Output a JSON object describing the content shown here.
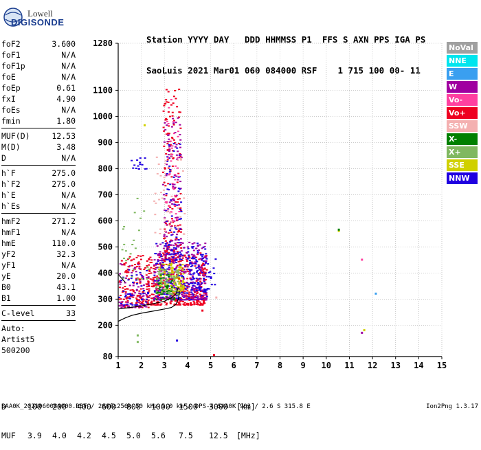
{
  "logo": {
    "line1": "Lowell",
    "line2": "DIGISONDE"
  },
  "header": {
    "labels": "Station YYYY DAY   DDD HHMMSS P1  FFS S AXN PPS IGA PS",
    "values": "SaoLuis 2021 Mar01 060 084000 RSF    1 715 100 00- 11"
  },
  "params_groups": [
    [
      {
        "name": "foF2",
        "value": "3.600"
      },
      {
        "name": "foF1",
        "value": "N/A"
      },
      {
        "name": "foF1p",
        "value": "N/A"
      },
      {
        "name": "foE",
        "value": "N/A"
      },
      {
        "name": "foEp",
        "value": "0.61"
      },
      {
        "name": "fxI",
        "value": "4.90"
      },
      {
        "name": "foEs",
        "value": "N/A"
      },
      {
        "name": "fmin",
        "value": "1.80"
      }
    ],
    [
      {
        "name": "MUF(D)",
        "value": "12.53"
      },
      {
        "name": "M(D)",
        "value": "3.48"
      },
      {
        "name": "D",
        "value": "N/A"
      }
    ],
    [
      {
        "name": "h`F",
        "value": "275.0"
      },
      {
        "name": "h`F2",
        "value": "275.0"
      },
      {
        "name": "h`E",
        "value": "N/A"
      },
      {
        "name": "h`Es",
        "value": "N/A"
      }
    ],
    [
      {
        "name": "hmF2",
        "value": "271.2"
      },
      {
        "name": "hmF1",
        "value": "N/A"
      },
      {
        "name": "hmE",
        "value": "110.0"
      },
      {
        "name": "yF2",
        "value": "32.3"
      },
      {
        "name": "yF1",
        "value": "N/A"
      },
      {
        "name": "yE",
        "value": "20.0"
      },
      {
        "name": "B0",
        "value": "43.1"
      },
      {
        "name": "B1",
        "value": "1.00"
      }
    ],
    [
      {
        "name": "C-level",
        "value": "33"
      }
    ]
  ],
  "autoscale": [
    "Auto:",
    "Artist5",
    "500200"
  ],
  "legend": [
    {
      "label": "NoVal",
      "color": "#a0a0a0"
    },
    {
      "label": "NNE",
      "color": "#00e5ee"
    },
    {
      "label": "E",
      "color": "#3a9ff0"
    },
    {
      "label": "W",
      "color": "#a000a0"
    },
    {
      "label": "Vo-",
      "color": "#ff40a0"
    },
    {
      "label": "Vo+",
      "color": "#ee0020"
    },
    {
      "label": "SSW",
      "color": "#f4b0b0"
    },
    {
      "label": "X-",
      "color": "#008000"
    },
    {
      "label": "X+",
      "color": "#80b860"
    },
    {
      "label": "SSE",
      "color": "#d0d000"
    },
    {
      "label": "NNW",
      "color": "#2000e0"
    }
  ],
  "chart_data": {
    "type": "scatter",
    "xlim": [
      1,
      15
    ],
    "ylim": [
      80,
      1280
    ],
    "x_ticks": [
      1,
      2,
      3,
      4,
      5,
      6,
      7,
      8,
      9,
      10,
      11,
      12,
      13,
      14,
      15
    ],
    "y_ticks": [
      80,
      200,
      300,
      400,
      500,
      600,
      700,
      800,
      900,
      1000,
      1100,
      1280
    ],
    "grid": true,
    "legend_position": "right",
    "clusters": [
      {
        "x_min": 1.0,
        "x_max": 2.3,
        "y_min": 270,
        "y_max": 470,
        "color": "#ee0020",
        "n": 140
      },
      {
        "x_min": 1.0,
        "x_max": 2.3,
        "y_min": 270,
        "y_max": 440,
        "color": "#a000a0",
        "n": 70
      },
      {
        "x_min": 1.0,
        "x_max": 2.3,
        "y_min": 280,
        "y_max": 420,
        "color": "#2000e0",
        "n": 50
      },
      {
        "x_min": 2.2,
        "x_max": 4.8,
        "y_min": 280,
        "y_max": 480,
        "color": "#ee0020",
        "n": 420
      },
      {
        "x_min": 2.5,
        "x_max": 4.8,
        "y_min": 300,
        "y_max": 520,
        "color": "#2000e0",
        "n": 260
      },
      {
        "x_min": 2.5,
        "x_max": 4.8,
        "y_min": 300,
        "y_max": 520,
        "color": "#a000a0",
        "n": 240
      },
      {
        "x_min": 2.7,
        "x_max": 3.8,
        "y_min": 330,
        "y_max": 440,
        "color": "#d0d000",
        "n": 110
      },
      {
        "x_min": 2.6,
        "x_max": 3.6,
        "y_min": 320,
        "y_max": 420,
        "color": "#80b860",
        "n": 90
      },
      {
        "x_min": 2.6,
        "x_max": 3.4,
        "y_min": 300,
        "y_max": 400,
        "color": "#008000",
        "n": 40
      },
      {
        "x_min": 1.1,
        "x_max": 2.3,
        "y_min": 380,
        "y_max": 700,
        "color": "#80b860",
        "n": 25
      },
      {
        "x_min": 2.9,
        "x_max": 3.7,
        "y_min": 450,
        "y_max": 1110,
        "color": "#ee0020",
        "n": 160
      },
      {
        "x_min": 2.9,
        "x_max": 3.7,
        "y_min": 450,
        "y_max": 1000,
        "color": "#a000a0",
        "n": 110
      },
      {
        "x_min": 3.0,
        "x_max": 3.7,
        "y_min": 450,
        "y_max": 900,
        "color": "#2000e0",
        "n": 70
      },
      {
        "x_min": 3.0,
        "x_max": 3.6,
        "y_min": 600,
        "y_max": 1080,
        "color": "#ff40a0",
        "n": 40
      },
      {
        "x_min": 2.5,
        "x_max": 3.9,
        "y_min": 550,
        "y_max": 860,
        "color": "#f4b0b0",
        "n": 40
      },
      {
        "x_min": 4.0,
        "x_max": 5.2,
        "y_min": 330,
        "y_max": 470,
        "color": "#2000e0",
        "n": 50
      },
      {
        "x_min": 1.5,
        "x_max": 2.2,
        "y_min": 800,
        "y_max": 850,
        "color": "#2000e0",
        "n": 15
      }
    ],
    "points": [
      {
        "x": 1.8,
        "y": 140,
        "color": "#80b860"
      },
      {
        "x": 1.8,
        "y": 165,
        "color": "#80b860"
      },
      {
        "x": 2.1,
        "y": 970,
        "color": "#d0d000"
      },
      {
        "x": 3.5,
        "y": 145,
        "color": "#2000e0"
      },
      {
        "x": 5.1,
        "y": 90,
        "color": "#ee0020"
      },
      {
        "x": 10.5,
        "y": 565,
        "color": "#d0d000"
      },
      {
        "x": 10.5,
        "y": 570,
        "color": "#008000"
      },
      {
        "x": 11.5,
        "y": 455,
        "color": "#ff40a0"
      },
      {
        "x": 11.5,
        "y": 175,
        "color": "#a000a0"
      },
      {
        "x": 11.6,
        "y": 185,
        "color": "#d0d000"
      },
      {
        "x": 12.1,
        "y": 325,
        "color": "#3a9ff0"
      },
      {
        "x": 5.2,
        "y": 310,
        "color": "#f4b0b0"
      },
      {
        "x": 4.6,
        "y": 260,
        "color": "#ee0020"
      }
    ],
    "trace_lines": [
      {
        "color": "#000000",
        "points": [
          [
            1.0,
            215
          ],
          [
            1.3,
            228
          ],
          [
            1.6,
            238
          ],
          [
            2.0,
            246
          ],
          [
            2.5,
            254
          ],
          [
            3.0,
            262
          ],
          [
            3.3,
            268
          ],
          [
            3.5,
            280
          ],
          [
            3.6,
            300
          ],
          [
            3.65,
            330
          ]
        ]
      },
      {
        "color": "#000000",
        "points": [
          [
            1.0,
            262
          ],
          [
            1.5,
            268
          ],
          [
            2.0,
            274
          ],
          [
            2.5,
            282
          ],
          [
            3.0,
            292
          ],
          [
            3.3,
            305
          ],
          [
            3.5,
            320
          ],
          [
            3.6,
            345
          ]
        ]
      },
      {
        "color": "#000000",
        "points": [
          [
            1.0,
            395
          ],
          [
            1.15,
            380
          ],
          [
            1.3,
            365
          ]
        ]
      }
    ]
  },
  "dmuf": {
    "d_label": "D",
    "d_values": [
      "100",
      "200",
      "400",
      "600",
      "800",
      "1000",
      "1500",
      "3000"
    ],
    "d_unit": "[km]",
    "muf_label": "MUF",
    "muf_values": [
      "3.9",
      "4.0",
      "4.2",
      "4.5",
      "5.0",
      "5.6",
      "7.5",
      "12.5"
    ],
    "muf_unit": "[MHz]"
  },
  "footer": {
    "left": "SAA0K_2021060084000.RSF / 280fx256h 50 kHz 5.0 km / DPS-4 SAA0K 903 / 2.6 S 315.8 E",
    "right": "Ion2Png 1.3.17"
  }
}
